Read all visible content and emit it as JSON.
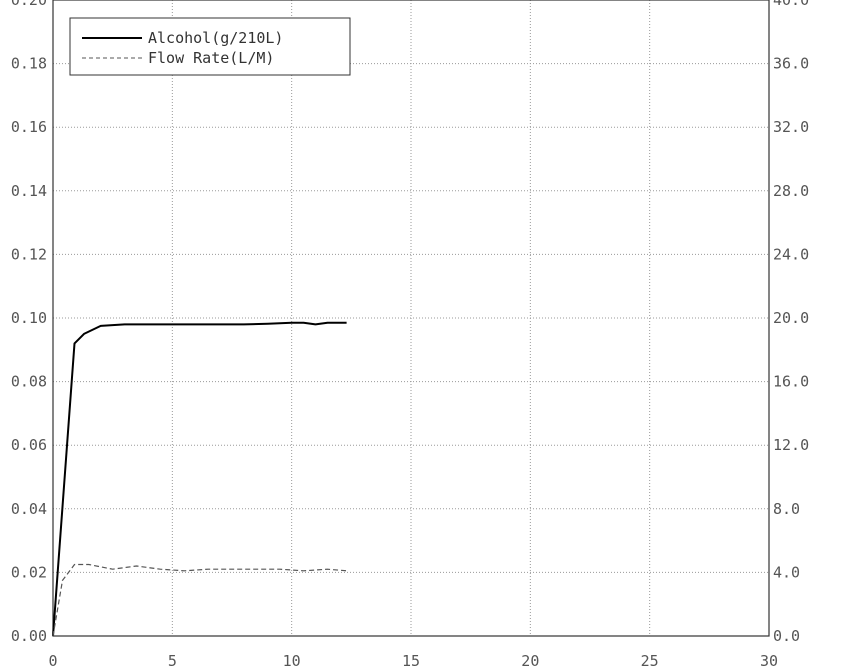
{
  "chart_data": {
    "type": "line",
    "title": "",
    "xlabel": "",
    "ylabel": "",
    "y2label": "",
    "xlim": [
      0,
      30
    ],
    "ylim": [
      0,
      0.2
    ],
    "y2lim": [
      0,
      40
    ],
    "grid": true,
    "legend_position": "top-left",
    "x_ticks": [
      "0",
      "5",
      "10",
      "15",
      "20",
      "25",
      "30"
    ],
    "y_ticks": [
      "0.00",
      "0.02",
      "0.04",
      "0.06",
      "0.08",
      "0.10",
      "0.12",
      "0.14",
      "0.16",
      "0.18",
      "0.20"
    ],
    "y2_ticks": [
      "0.0",
      "4.0",
      "8.0",
      "12.0",
      "16.0",
      "20.0",
      "24.0",
      "28.0",
      "32.0",
      "36.0",
      "40.0"
    ],
    "series": [
      {
        "name": "Alcohol(g/210L)",
        "axis": "left",
        "style": "solid",
        "color": "#000000",
        "x": [
          0,
          0.9,
          1.3,
          2.0,
          3.0,
          4.0,
          5.0,
          6.0,
          7.0,
          8.0,
          9.0,
          10.0,
          10.5,
          11.0,
          11.5,
          12.0,
          12.3
        ],
        "y": [
          0,
          0.092,
          0.095,
          0.0975,
          0.098,
          0.098,
          0.098,
          0.098,
          0.098,
          0.098,
          0.0982,
          0.0985,
          0.0985,
          0.098,
          0.0985,
          0.0985,
          0.0985
        ]
      },
      {
        "name": "Flow Rate(L/M)",
        "axis": "right",
        "style": "dashed",
        "color": "#555555",
        "x": [
          0,
          0.4,
          0.9,
          1.5,
          2.5,
          3.5,
          4.5,
          5.5,
          6.5,
          7.5,
          8.5,
          9.5,
          10.5,
          11.5,
          12.3
        ],
        "y": [
          0,
          3.5,
          4.5,
          4.5,
          4.2,
          4.4,
          4.2,
          4.1,
          4.2,
          4.2,
          4.2,
          4.2,
          4.1,
          4.2,
          4.1
        ]
      }
    ]
  }
}
